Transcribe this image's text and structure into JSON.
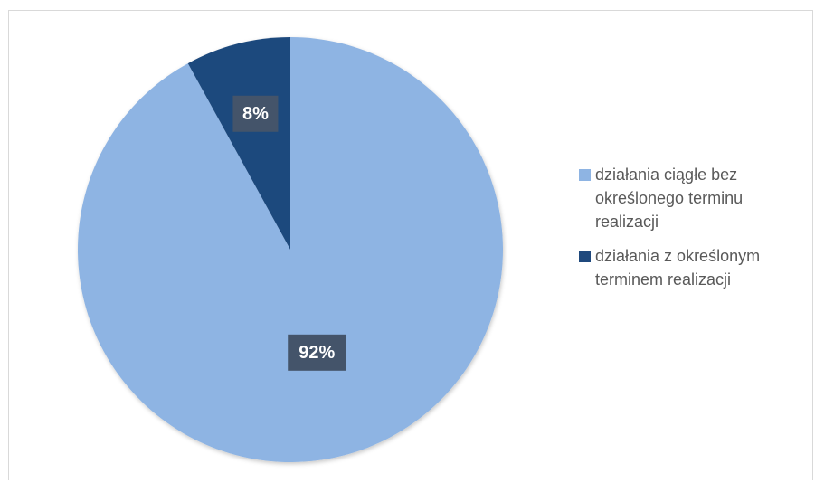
{
  "chart_data": {
    "type": "pie",
    "title": "",
    "slices": [
      {
        "label": "działania ciągłe bez określonego terminu realizacji",
        "value": 92,
        "display": "92%",
        "color": "#8eb4e3"
      },
      {
        "label": "działania z określonym terminem realizacji",
        "value": 8,
        "display": "8%",
        "color": "#1f497d"
      }
    ],
    "legend_position": "right",
    "label_box_color": "#44546a"
  }
}
